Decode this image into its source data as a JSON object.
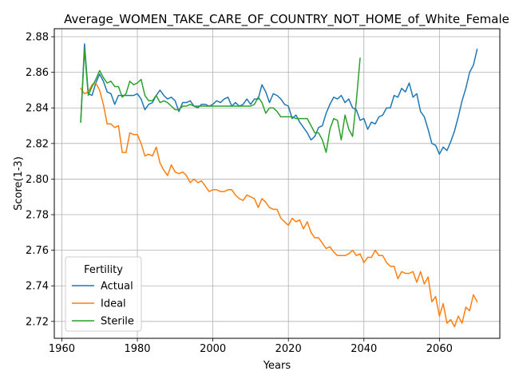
{
  "chart_data": {
    "type": "line",
    "title": "Average_WOMEN_TAKE_CARE_OF_COUNTRY_NOT_HOME_of_White_Female",
    "xlabel": "Years",
    "ylabel": "Score(1-3)",
    "xlim": [
      1958,
      2076
    ],
    "ylim": [
      2.7105,
      2.8845
    ],
    "xticks": [
      1960,
      1980,
      2000,
      2020,
      2040,
      2060
    ],
    "yticks": [
      2.72,
      2.74,
      2.76,
      2.78,
      2.8,
      2.82,
      2.84,
      2.86,
      2.88
    ],
    "ytick_labels": [
      "2.72",
      "2.74",
      "2.76",
      "2.78",
      "2.80",
      "2.82",
      "2.84",
      "2.86",
      "2.88"
    ],
    "grid": true,
    "legend": {
      "title": "Fertility",
      "placement": "lower-left"
    },
    "series": [
      {
        "name": "Actual",
        "color": "#1f77b4",
        "x": [
          1965,
          1966,
          1967,
          1968,
          1969,
          1970,
          1971,
          1972,
          1973,
          1974,
          1975,
          1976,
          1977,
          1978,
          1979,
          1980,
          1981,
          1982,
          1983,
          1984,
          1985,
          1986,
          1987,
          1988,
          1989,
          1990,
          1991,
          1992,
          1993,
          1994,
          1995,
          1996,
          1997,
          1998,
          1999,
          2000,
          2001,
          2002,
          2003,
          2004,
          2005,
          2006,
          2007,
          2008,
          2009,
          2010,
          2011,
          2012,
          2013,
          2014,
          2015,
          2016,
          2017,
          2018,
          2019,
          2020,
          2021,
          2022,
          2023,
          2024,
          2025,
          2026,
          2027,
          2028,
          2029,
          2030,
          2031,
          2032,
          2033,
          2034,
          2035,
          2036,
          2037,
          2038,
          2039,
          2040,
          2041,
          2042,
          2043,
          2044,
          2045,
          2046,
          2047,
          2048,
          2049,
          2050,
          2051,
          2052,
          2053,
          2054,
          2055,
          2056,
          2057,
          2058,
          2059,
          2060,
          2061,
          2062,
          2063,
          2064,
          2065,
          2066,
          2067,
          2068,
          2069,
          2070
        ],
        "values": [
          2.832,
          2.876,
          2.848,
          2.847,
          2.854,
          2.859,
          2.855,
          2.849,
          2.848,
          2.842,
          2.847,
          2.847,
          2.847,
          2.847,
          2.847,
          2.848,
          2.845,
          2.839,
          2.842,
          2.843,
          2.847,
          2.85,
          2.847,
          2.845,
          2.846,
          2.844,
          2.838,
          2.843,
          2.843,
          2.844,
          2.841,
          2.84,
          2.842,
          2.842,
          2.841,
          2.842,
          2.844,
          2.843,
          2.845,
          2.846,
          2.841,
          2.843,
          2.841,
          2.842,
          2.845,
          2.842,
          2.845,
          2.845,
          2.853,
          2.849,
          2.843,
          2.848,
          2.847,
          2.845,
          2.842,
          2.841,
          2.834,
          2.836,
          2.832,
          2.829,
          2.826,
          2.822,
          2.824,
          2.829,
          2.83,
          2.837,
          2.842,
          2.846,
          2.845,
          2.847,
          2.843,
          2.845,
          2.84,
          2.839,
          2.833,
          2.834,
          2.828,
          2.832,
          2.831,
          2.835,
          2.836,
          2.84,
          2.84,
          2.847,
          2.846,
          2.851,
          2.849,
          2.854,
          2.846,
          2.848,
          2.838,
          2.835,
          2.828,
          2.82,
          2.819,
          2.814,
          2.818,
          2.816,
          2.821,
          2.827,
          2.835,
          2.844,
          2.851,
          2.86,
          2.864,
          2.873
        ]
      },
      {
        "name": "Ideal",
        "color": "#ff7f0e",
        "x": [
          1965,
          1966,
          1967,
          1968,
          1969,
          1970,
          1971,
          1972,
          1973,
          1974,
          1975,
          1976,
          1977,
          1978,
          1979,
          1980,
          1981,
          1982,
          1983,
          1984,
          1985,
          1986,
          1987,
          1988,
          1989,
          1990,
          1991,
          1992,
          1993,
          1994,
          1995,
          1996,
          1997,
          1998,
          1999,
          2000,
          2001,
          2002,
          2003,
          2004,
          2005,
          2006,
          2007,
          2008,
          2009,
          2010,
          2011,
          2012,
          2013,
          2014,
          2015,
          2016,
          2017,
          2018,
          2019,
          2020,
          2021,
          2022,
          2023,
          2024,
          2025,
          2026,
          2027,
          2028,
          2029,
          2030,
          2031,
          2032,
          2033,
          2034,
          2035,
          2036,
          2037,
          2038,
          2039,
          2040,
          2041,
          2042,
          2043,
          2044,
          2045,
          2046,
          2047,
          2048,
          2049,
          2050,
          2051,
          2052,
          2053,
          2054,
          2055,
          2056,
          2057,
          2058,
          2059,
          2060,
          2061,
          2062,
          2063,
          2064,
          2065,
          2066,
          2067,
          2068,
          2069,
          2070
        ],
        "values": [
          2.851,
          2.848,
          2.849,
          2.853,
          2.854,
          2.85,
          2.842,
          2.831,
          2.831,
          2.829,
          2.83,
          2.815,
          2.815,
          2.826,
          2.825,
          2.825,
          2.82,
          2.813,
          2.814,
          2.813,
          2.818,
          2.809,
          2.805,
          2.802,
          2.808,
          2.804,
          2.803,
          2.804,
          2.802,
          2.798,
          2.8,
          2.798,
          2.799,
          2.796,
          2.793,
          2.794,
          2.794,
          2.793,
          2.793,
          2.794,
          2.794,
          2.791,
          2.789,
          2.788,
          2.791,
          2.79,
          2.789,
          2.784,
          2.789,
          2.787,
          2.784,
          2.783,
          2.783,
          2.778,
          2.776,
          2.774,
          2.778,
          2.776,
          2.777,
          2.772,
          2.776,
          2.77,
          2.767,
          2.767,
          2.764,
          2.761,
          2.762,
          2.759,
          2.757,
          2.757,
          2.757,
          2.758,
          2.76,
          2.757,
          2.758,
          2.753,
          2.756,
          2.756,
          2.76,
          2.757,
          2.757,
          2.753,
          2.751,
          2.751,
          2.744,
          2.748,
          2.747,
          2.747,
          2.748,
          2.742,
          2.748,
          2.741,
          2.745,
          2.731,
          2.734,
          2.723,
          2.73,
          2.719,
          2.721,
          2.717,
          2.723,
          2.719,
          2.728,
          2.726,
          2.735,
          2.731
        ]
      },
      {
        "name": "Sterile",
        "color": "#2ca02c",
        "x": [
          1965,
          1966,
          1967,
          1968,
          1969,
          1970,
          1971,
          1972,
          1973,
          1974,
          1975,
          1976,
          1977,
          1978,
          1979,
          1980,
          1981,
          1982,
          1983,
          1984,
          1985,
          1986,
          1987,
          1988,
          1989,
          1990,
          1991,
          1992,
          1993,
          1994,
          1995,
          1996,
          1997,
          1998,
          1999,
          2000,
          2001,
          2002,
          2003,
          2004,
          2005,
          2006,
          2007,
          2008,
          2009,
          2010,
          2011,
          2012,
          2013,
          2014,
          2015,
          2016,
          2017,
          2018,
          2019,
          2020,
          2021,
          2022,
          2023,
          2024,
          2025,
          2026,
          2027,
          2028,
          2029,
          2030,
          2031,
          2032,
          2033,
          2034,
          2035,
          2036,
          2037,
          2038,
          2039
        ],
        "values": [
          2.832,
          2.873,
          2.847,
          2.852,
          2.856,
          2.861,
          2.857,
          2.854,
          2.855,
          2.852,
          2.852,
          2.846,
          2.848,
          2.855,
          2.853,
          2.854,
          2.856,
          2.847,
          2.844,
          2.844,
          2.847,
          2.843,
          2.844,
          2.843,
          2.841,
          2.839,
          2.839,
          2.841,
          2.841,
          2.842,
          2.841,
          2.841,
          2.841,
          2.841,
          2.841,
          2.841,
          2.841,
          2.841,
          2.841,
          2.841,
          2.841,
          2.841,
          2.841,
          2.841,
          2.841,
          2.841,
          2.842,
          2.846,
          2.843,
          2.837,
          2.84,
          2.84,
          2.838,
          2.835,
          2.835,
          2.835,
          2.835,
          2.834,
          2.834,
          2.834,
          2.834,
          2.83,
          2.826,
          2.826,
          2.822,
          2.815,
          2.828,
          2.834,
          2.833,
          2.822,
          2.836,
          2.828,
          2.824,
          2.844,
          2.868
        ]
      }
    ]
  }
}
